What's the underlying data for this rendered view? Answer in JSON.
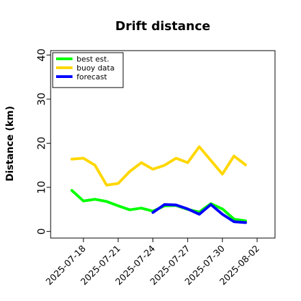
{
  "chart_data": {
    "type": "line",
    "title": "Drift distance",
    "xlabel": "",
    "ylabel": "Distance (km)",
    "ylim": [
      -1.5,
      41
    ],
    "yticks": [
      0,
      10,
      20,
      30,
      40
    ],
    "xlim": [
      "2025-07-15T04:00",
      "2025-08-03T13:00"
    ],
    "xticks": [
      "2025-07-18",
      "2025-07-21",
      "2025-07-24",
      "2025-07-27",
      "2025-07-30",
      "2025-08-02"
    ],
    "highlighted_xtick": {
      "label": "2025-07-24",
      "color": "#228B22"
    },
    "grid": false,
    "legend_position": "top-left",
    "series": [
      {
        "name": "best est.",
        "color": "#00ff00",
        "x": [
          "2025-07-17",
          "2025-07-18",
          "2025-07-19",
          "2025-07-20",
          "2025-07-21",
          "2025-07-22",
          "2025-07-23",
          "2025-07-24",
          "2025-07-25",
          "2025-07-26",
          "2025-07-27",
          "2025-07-28",
          "2025-07-29",
          "2025-07-30",
          "2025-07-31",
          "2025-08-01"
        ],
        "values": [
          9.3,
          6.9,
          7.3,
          6.8,
          5.8,
          4.9,
          5.3,
          4.6,
          5.8,
          5.9,
          5.0,
          4.4,
          6.3,
          5.1,
          2.8,
          2.4
        ]
      },
      {
        "name": "buoy data",
        "color": "#ffd700",
        "x": [
          "2025-07-17",
          "2025-07-18",
          "2025-07-19",
          "2025-07-20",
          "2025-07-21",
          "2025-07-22",
          "2025-07-23",
          "2025-07-24",
          "2025-07-25",
          "2025-07-26",
          "2025-07-27",
          "2025-07-28",
          "2025-07-29",
          "2025-07-30",
          "2025-07-31",
          "2025-08-01"
        ],
        "values": [
          16.4,
          16.6,
          15.0,
          10.5,
          10.9,
          13.6,
          15.6,
          14.1,
          15.0,
          16.6,
          15.6,
          19.2,
          16.1,
          13.0,
          17.1,
          15.1
        ]
      },
      {
        "name": "forecast",
        "color": "#0000ff",
        "x": [
          "2025-07-24",
          "2025-07-25",
          "2025-07-26",
          "2025-07-27",
          "2025-07-28",
          "2025-07-29",
          "2025-07-30",
          "2025-07-31",
          "2025-08-01"
        ],
        "values": [
          4.3,
          6.1,
          6.0,
          5.1,
          3.9,
          6.1,
          3.9,
          2.2,
          2.0
        ]
      }
    ]
  }
}
